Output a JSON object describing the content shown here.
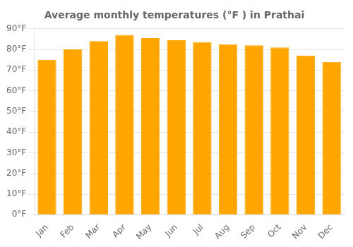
{
  "chart_data": {
    "type": "bar",
    "title": "Average monthly temperatures (°F ) in Prathai",
    "categories": [
      "Jan",
      "Feb",
      "Mar",
      "Apr",
      "May",
      "Jun",
      "Jul",
      "Aug",
      "Sep",
      "Oct",
      "Nov",
      "Dec"
    ],
    "values": [
      75.0,
      80.0,
      84.0,
      87.0,
      85.5,
      84.5,
      83.5,
      82.5,
      82.0,
      81.0,
      77.0,
      74.0
    ],
    "color": "#FFA500",
    "ylim": [
      0,
      90
    ],
    "yticks": [
      {
        "value": 0,
        "label": "0°F"
      },
      {
        "value": 10,
        "label": "10°F"
      },
      {
        "value": 20,
        "label": "20°F"
      },
      {
        "value": 30,
        "label": "30°F"
      },
      {
        "value": 40,
        "label": "40°F"
      },
      {
        "value": 50,
        "label": "50°F"
      },
      {
        "value": 60,
        "label": "60°F"
      },
      {
        "value": 70,
        "label": "70°F"
      },
      {
        "value": 80,
        "label": "80°F"
      },
      {
        "value": 90,
        "label": "90°F"
      }
    ],
    "grid": true
  }
}
